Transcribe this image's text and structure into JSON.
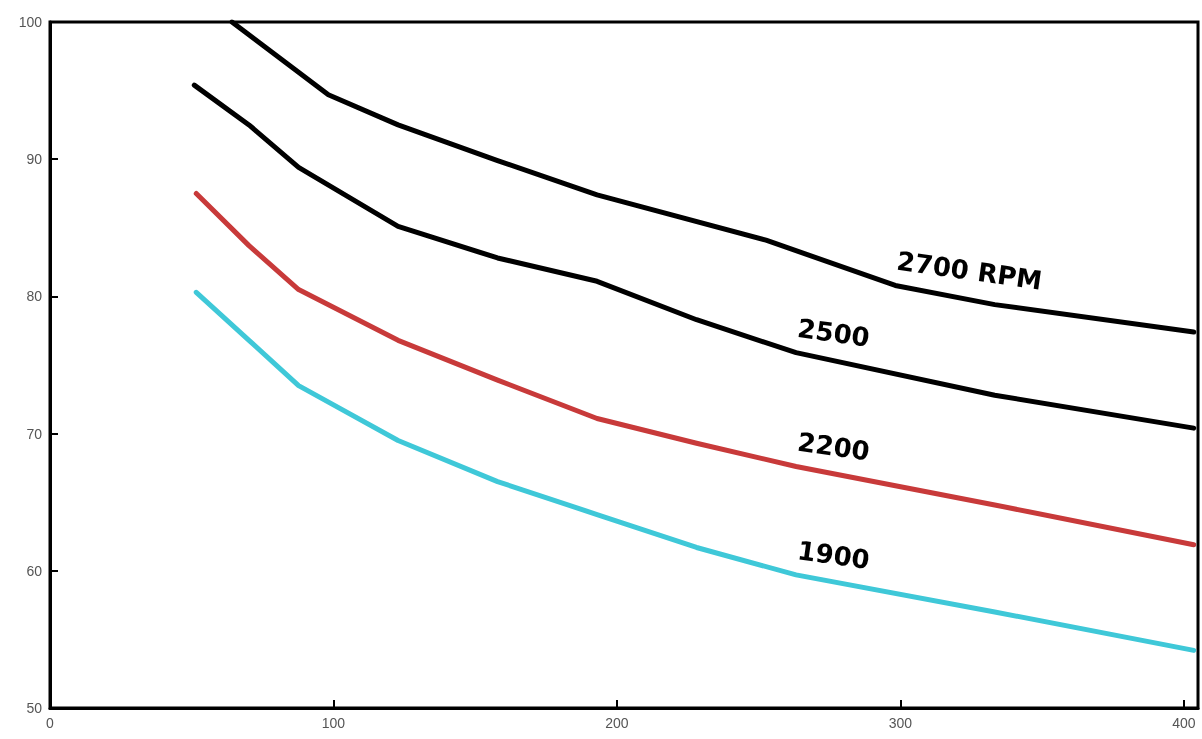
{
  "chart_data": {
    "type": "line",
    "xlim": [
      0,
      405
    ],
    "xticks": [
      0,
      100,
      200,
      300,
      400
    ],
    "ylim": [
      50,
      100
    ],
    "yticks": [
      50,
      60,
      70,
      80,
      90,
      100
    ],
    "grid": false,
    "legend": false,
    "marker": "none",
    "line_style": "solid",
    "series": [
      {
        "name": "2700 RPM",
        "color": "#000000",
        "x": [
          64.2,
          98.2,
          122.8,
          157.9,
          193,
          252.6,
          298.2,
          333.3,
          403.5
        ],
        "values": [
          100,
          94.7,
          92.5,
          89.9,
          87.4,
          84.1,
          80.8,
          79.4,
          77.4
        ]
      },
      {
        "name": "2500",
        "color": "#000000",
        "x": [
          50.9,
          70.2,
          87.7,
          122.8,
          157.9,
          193,
          228.1,
          263.2,
          333.3,
          403.5
        ],
        "values": [
          95.4,
          92.5,
          89.4,
          85.1,
          82.8,
          81.1,
          78.3,
          75.9,
          72.8,
          70.4
        ]
      },
      {
        "name": "2200",
        "color": "#c83a3a",
        "x": [
          51.6,
          70.2,
          87.7,
          122.8,
          157.9,
          193,
          228.1,
          263.2,
          333.3,
          403.5
        ],
        "values": [
          87.5,
          83.7,
          80.5,
          76.8,
          73.9,
          71.1,
          69.3,
          67.6,
          64.8,
          61.9
        ]
      },
      {
        "name": "1900",
        "color": "#3fc8d8",
        "x": [
          51.6,
          70.2,
          87.7,
          122.8,
          157.9,
          193,
          228.1,
          263.2,
          333.3,
          403.5
        ],
        "values": [
          80.3,
          76.8,
          73.5,
          69.5,
          66.5,
          64.1,
          61.7,
          59.7,
          57.0,
          54.2
        ]
      }
    ]
  }
}
